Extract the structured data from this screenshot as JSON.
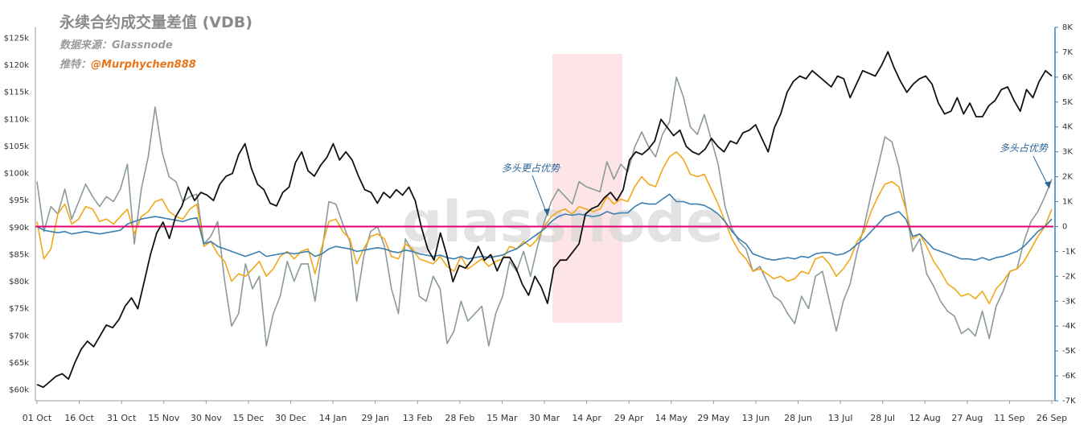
{
  "chart_data": {
    "type": "line",
    "title": "永续合约成交量差值 (VDB)",
    "source": "数据来源：Glassnode",
    "handle_prefix": "推特：",
    "handle": "@Murphychen888",
    "watermark": "glassnode",
    "left_axis": {
      "ticks": [
        "$60k",
        "$65k",
        "$70k",
        "$75k",
        "$80k",
        "$85k",
        "$90k",
        "$95k",
        "$100k",
        "$105k",
        "$110k",
        "$115k",
        "$120k",
        "$125k"
      ],
      "range": [
        58000,
        127000
      ]
    },
    "right_axis": {
      "ticks": [
        "-7K",
        "-6K",
        "-5K",
        "-4K",
        "-3K",
        "-2K",
        "-1K",
        "0",
        "1K",
        "2K",
        "3K",
        "4K",
        "5K",
        "6K",
        "7K",
        "8K"
      ],
      "range": [
        -7000,
        8000
      ]
    },
    "x_ticks": [
      "01 Oct",
      "16 Oct",
      "31 Oct",
      "15 Nov",
      "30 Nov",
      "15 Dec",
      "30 Dec",
      "14 Jan",
      "29 Jan",
      "13 Feb",
      "28 Feb",
      "15 Mar",
      "30 Mar",
      "14 Apr",
      "29 Apr",
      "14 May",
      "29 May",
      "13 Jun",
      "28 Jun",
      "13 Jul",
      "28 Jul",
      "12 Aug",
      "27 Aug",
      "11 Sep",
      "26 Sep"
    ],
    "annotations": [
      "多头更占优势",
      "多头占优势"
    ],
    "highlight_range": [
      "30 Mar",
      "19 Apr"
    ],
    "colors": {
      "price": "#111111",
      "gray": "#8c9a9a",
      "orange": "#f2a71b",
      "blue": "#3a7fb2",
      "zero": "#e0006f",
      "highlight": "#fde4e6",
      "right_axis": "#3a7fb2"
    },
    "series": [
      {
        "key": "price",
        "axis": "left",
        "values": [
          61000,
          60500,
          61500,
          62500,
          63000,
          62000,
          65000,
          67500,
          69000,
          68000,
          70000,
          72000,
          71500,
          73000,
          75500,
          77000,
          75000,
          80000,
          85000,
          89000,
          91000,
          88000,
          92000,
          94000,
          97500,
          95000,
          96500,
          96000,
          95000,
          98000,
          99500,
          100000,
          103500,
          105500,
          101000,
          98000,
          97000,
          94500,
          94000,
          96500,
          97500,
          102000,
          104000,
          100500,
          99500,
          101500,
          103000,
          105500,
          102500,
          104000,
          102500,
          99500,
          97000,
          96500,
          94500,
          96500,
          95500,
          97000,
          96000,
          97500,
          95000,
          90000,
          86000,
          84000,
          89000,
          85000,
          80000,
          83000,
          82500,
          84000,
          86500,
          84000,
          85000,
          82000,
          84500,
          84500,
          82500,
          79500,
          77500,
          81000,
          79000,
          76000,
          82500,
          84000,
          84000,
          85500,
          87000,
          92500,
          93500,
          94000,
          95500,
          96500,
          95000,
          97000,
          102500,
          104000,
          103500,
          104500,
          106000,
          110000,
          108500,
          107000,
          108000,
          105000,
          104000,
          103500,
          104500,
          106500,
          105000,
          104000,
          106000,
          105500,
          107500,
          108000,
          109000,
          106500,
          104000,
          108500,
          111000,
          115000,
          117000,
          118000,
          117500,
          119000,
          118000,
          117000,
          116000,
          118000,
          117500,
          114000,
          116500,
          119000,
          118500,
          118000,
          120000,
          122500,
          119500,
          117000,
          115000,
          116500,
          117500,
          118000,
          116500,
          113000,
          111000,
          111500,
          114000,
          111000,
          113000,
          110500,
          110500,
          112500,
          113500,
          115500,
          116000,
          113500,
          111500,
          115500,
          114000,
          117000,
          119000,
          118000
        ],
        "note": "Bitcoin price"
      },
      {
        "key": "gray",
        "axis": "right",
        "values": [
          1800,
          -200,
          800,
          500,
          1500,
          300,
          1000,
          1700,
          1200,
          800,
          1200,
          1000,
          1500,
          2500,
          -700,
          1500,
          2800,
          4800,
          3000,
          2000,
          1800,
          1000,
          1200,
          1300,
          -700,
          -400,
          200,
          -2200,
          -4000,
          -3500,
          -1500,
          -2500,
          -2000,
          -4800,
          -3500,
          -2800,
          -1400,
          -2200,
          -1500,
          -1500,
          -3000,
          -1000,
          1000,
          900,
          100,
          -600,
          -3000,
          -1200,
          -200,
          0,
          -800,
          -2500,
          -3500,
          -500,
          -1000,
          -2800,
          -3000,
          -2000,
          -2500,
          -4700,
          -4200,
          -3000,
          -3800,
          -3500,
          -3200,
          -4800,
          -3500,
          -2800,
          -1400,
          -1800,
          -1000,
          -2000,
          -800,
          200,
          1000,
          1500,
          1200,
          900,
          1800,
          1600,
          1500,
          1400,
          2600,
          1900,
          2500,
          2200,
          3200,
          3800,
          3200,
          2800,
          3700,
          4200,
          6000,
          5200,
          4000,
          3700,
          4500,
          3500,
          2500,
          800,
          -100,
          -600,
          -900,
          -1800,
          -1600,
          -2200,
          -2800,
          -3000,
          -3500,
          -3900,
          -2800,
          -3300,
          -2000,
          -1800,
          -3000,
          -4200,
          -3000,
          -2300,
          -1000,
          0,
          1300,
          2400,
          3600,
          3400,
          2400,
          800,
          -1000,
          -500,
          -1900,
          -2400,
          -3000,
          -3400,
          -3600,
          -4300,
          -4100,
          -4400,
          -3400,
          -4500,
          -3200,
          -2600,
          -1800,
          -1700,
          -600,
          200,
          600,
          1200,
          1900
        ],
        "note": "gray series"
      },
      {
        "key": "orange",
        "axis": "right",
        "values": [
          200,
          -1300,
          -900,
          500,
          900,
          100,
          300,
          800,
          700,
          200,
          300,
          100,
          400,
          700,
          -300,
          400,
          600,
          1000,
          1100,
          600,
          400,
          300,
          700,
          900,
          -800,
          -600,
          -1100,
          -1400,
          -2200,
          -1900,
          -2000,
          -1700,
          -1400,
          -2000,
          -1700,
          -1200,
          -1000,
          -1300,
          -1000,
          -900,
          -1900,
          -800,
          200,
          300,
          -200,
          -500,
          -1500,
          -900,
          -400,
          -300,
          -500,
          -1200,
          -1300,
          -700,
          -900,
          -1300,
          -1400,
          -1500,
          -1200,
          -1600,
          -1800,
          -1200,
          -1700,
          -1500,
          -1300,
          -1600,
          -1400,
          -1300,
          -800,
          -900,
          -600,
          -800,
          -500,
          0,
          400,
          600,
          700,
          500,
          800,
          700,
          600,
          700,
          1200,
          900,
          1100,
          1000,
          1600,
          2000,
          1700,
          1600,
          2300,
          2800,
          3000,
          2700,
          2100,
          2000,
          2100,
          1500,
          900,
          200,
          -500,
          -1000,
          -1300,
          -1800,
          -1700,
          -1900,
          -2100,
          -2000,
          -2200,
          -2100,
          -1800,
          -1900,
          -1300,
          -1200,
          -1500,
          -2000,
          -1700,
          -1300,
          -600,
          -200,
          600,
          1200,
          1700,
          1800,
          1600,
          700,
          -500,
          -300,
          -800,
          -1400,
          -1800,
          -2300,
          -2500,
          -2800,
          -2700,
          -2900,
          -2600,
          -3100,
          -2500,
          -2200,
          -1800,
          -1700,
          -1400,
          -900,
          -400,
          0,
          700
        ],
        "note": "orange series"
      },
      {
        "key": "blue",
        "axis": "right",
        "values": [
          0,
          -150,
          -200,
          -250,
          -200,
          -300,
          -250,
          -200,
          -250,
          -300,
          -250,
          -200,
          -150,
          100,
          200,
          300,
          350,
          400,
          350,
          300,
          250,
          200,
          300,
          350,
          -700,
          -600,
          -800,
          -900,
          -1000,
          -1100,
          -1200,
          -1100,
          -1000,
          -1200,
          -1150,
          -1100,
          -1050,
          -1100,
          -1050,
          -1000,
          -1200,
          -1100,
          -900,
          -800,
          -850,
          -900,
          -1000,
          -950,
          -900,
          -850,
          -900,
          -1000,
          -1050,
          -950,
          -1000,
          -1100,
          -1150,
          -1200,
          -1150,
          -1250,
          -1300,
          -1200,
          -1300,
          -1250,
          -1200,
          -1250,
          -1200,
          -1150,
          -1000,
          -900,
          -700,
          -500,
          -300,
          -100,
          200,
          400,
          500,
          450,
          500,
          450,
          400,
          450,
          600,
          500,
          550,
          550,
          800,
          950,
          900,
          900,
          1100,
          1300,
          1000,
          1000,
          900,
          900,
          850,
          700,
          500,
          200,
          -200,
          -500,
          -700,
          -1100,
          -1200,
          -1300,
          -1350,
          -1300,
          -1250,
          -1300,
          -1200,
          -1250,
          -1100,
          -1050,
          -1050,
          -1150,
          -1100,
          -950,
          -700,
          -500,
          -200,
          100,
          400,
          500,
          600,
          300,
          -400,
          -300,
          -600,
          -900,
          -1000,
          -1100,
          -1200,
          -1300,
          -1300,
          -1350,
          -1250,
          -1350,
          -1250,
          -1200,
          -1100,
          -1000,
          -800,
          -500,
          -200,
          0,
          300
        ],
        "note": "blue series"
      }
    ]
  }
}
